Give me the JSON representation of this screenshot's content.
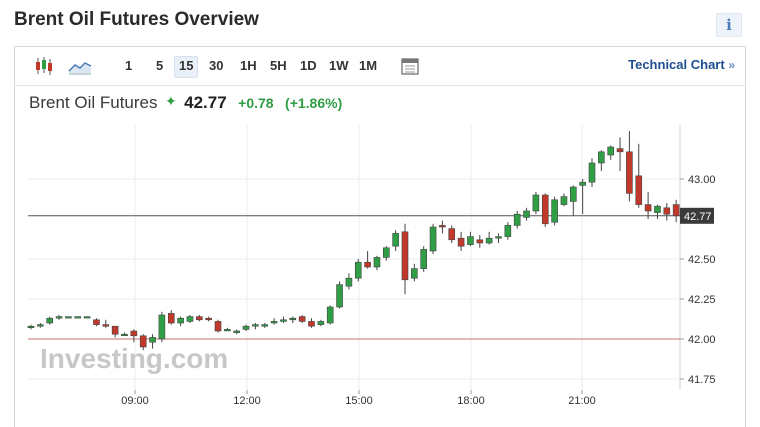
{
  "page": {
    "title": "Brent Oil Futures Overview",
    "info_glyph": "i"
  },
  "toolbar": {
    "intervals": [
      "1",
      "5",
      "15",
      "30",
      "1H",
      "5H",
      "1D",
      "1W",
      "1M"
    ],
    "active_interval": "15",
    "technical_chart_label": "Technical Chart",
    "technical_chart_arrow": "»"
  },
  "quote": {
    "name": "Brent Oil Futures",
    "price": "42.77",
    "change": "+0.78",
    "change_pct": "(+1.86%)"
  },
  "chart_data": {
    "type": "candlestick",
    "x_ticks": [
      "09:00",
      "12:00",
      "15:00",
      "18:00",
      "21:00"
    ],
    "y_ticks": [
      "43.00",
      "42.50",
      "42.25",
      "42.00",
      "41.75"
    ],
    "ylim": [
      41.72,
      43.3
    ],
    "current_price_label": "42.77",
    "current_price": 42.77,
    "reference_line": 42.0,
    "watermark": "Investing.com",
    "candles": [
      [
        42.08,
        42.09,
        42.06,
        42.08
      ],
      [
        42.08,
        42.1,
        42.07,
        42.09
      ],
      [
        42.1,
        42.14,
        42.09,
        42.13
      ],
      [
        42.13,
        42.15,
        42.12,
        42.14
      ],
      [
        42.14,
        42.14,
        42.14,
        42.14
      ],
      [
        42.14,
        42.14,
        42.14,
        42.14
      ],
      [
        42.14,
        42.14,
        42.14,
        42.14
      ],
      [
        42.12,
        42.13,
        42.08,
        42.09
      ],
      [
        42.09,
        42.12,
        42.07,
        42.08
      ],
      [
        42.08,
        42.08,
        42.01,
        42.03
      ],
      [
        42.03,
        42.04,
        42.02,
        42.03
      ],
      [
        42.05,
        42.06,
        41.98,
        42.02
      ],
      [
        42.02,
        42.03,
        41.93,
        41.95
      ],
      [
        41.98,
        42.03,
        41.94,
        42.01
      ],
      [
        42.0,
        42.17,
        41.98,
        42.15
      ],
      [
        42.16,
        42.18,
        42.09,
        42.1
      ],
      [
        42.1,
        42.14,
        42.08,
        42.13
      ],
      [
        42.11,
        42.15,
        42.1,
        42.14
      ],
      [
        42.14,
        42.15,
        42.11,
        42.12
      ],
      [
        42.13,
        42.14,
        42.11,
        42.12
      ],
      [
        42.11,
        42.12,
        42.04,
        42.05
      ],
      [
        42.06,
        42.07,
        42.05,
        42.06
      ],
      [
        42.04,
        42.06,
        42.03,
        42.05
      ],
      [
        42.06,
        42.09,
        42.05,
        42.08
      ],
      [
        42.08,
        42.1,
        42.06,
        42.09
      ],
      [
        42.08,
        42.1,
        42.07,
        42.09
      ],
      [
        42.1,
        42.13,
        42.09,
        42.11
      ],
      [
        42.11,
        42.14,
        42.1,
        42.12
      ],
      [
        42.12,
        42.14,
        42.1,
        42.13
      ],
      [
        42.14,
        42.15,
        42.1,
        42.11
      ],
      [
        42.11,
        42.13,
        42.07,
        42.08
      ],
      [
        42.09,
        42.12,
        42.08,
        42.11
      ],
      [
        42.1,
        42.21,
        42.09,
        42.2
      ],
      [
        42.2,
        42.36,
        42.19,
        42.34
      ],
      [
        42.33,
        42.41,
        42.31,
        42.38
      ],
      [
        42.38,
        42.5,
        42.36,
        42.48
      ],
      [
        42.48,
        42.55,
        42.44,
        42.45
      ],
      [
        42.45,
        42.52,
        42.43,
        42.51
      ],
      [
        42.51,
        42.58,
        42.49,
        42.57
      ],
      [
        42.58,
        42.68,
        42.55,
        42.66
      ],
      [
        42.67,
        42.72,
        42.28,
        42.37
      ],
      [
        42.38,
        42.47,
        42.36,
        42.44
      ],
      [
        42.44,
        42.58,
        42.42,
        42.56
      ],
      [
        42.55,
        42.72,
        42.53,
        42.7
      ],
      [
        42.71,
        42.74,
        42.66,
        42.7
      ],
      [
        42.69,
        42.71,
        42.6,
        42.62
      ],
      [
        42.63,
        42.67,
        42.55,
        42.58
      ],
      [
        42.59,
        42.67,
        42.58,
        42.64
      ],
      [
        42.62,
        42.65,
        42.57,
        42.6
      ],
      [
        42.6,
        42.67,
        42.59,
        42.63
      ],
      [
        42.63,
        42.66,
        42.6,
        42.64
      ],
      [
        42.64,
        42.73,
        42.62,
        42.71
      ],
      [
        42.71,
        42.8,
        42.69,
        42.78
      ],
      [
        42.76,
        42.82,
        42.74,
        42.8
      ],
      [
        42.8,
        42.92,
        42.78,
        42.9
      ],
      [
        42.9,
        42.91,
        42.7,
        42.72
      ],
      [
        42.73,
        42.89,
        42.71,
        42.87
      ],
      [
        42.84,
        42.91,
        42.83,
        42.89
      ],
      [
        42.86,
        42.96,
        42.77,
        42.95
      ],
      [
        42.96,
        43.0,
        42.78,
        42.98
      ],
      [
        42.98,
        43.13,
        42.95,
        43.1
      ],
      [
        43.1,
        43.18,
        43.05,
        43.17
      ],
      [
        43.15,
        43.21,
        43.12,
        43.2
      ],
      [
        43.19,
        43.26,
        43.05,
        43.17
      ],
      [
        43.17,
        43.3,
        42.86,
        42.91
      ],
      [
        43.02,
        43.22,
        42.82,
        42.84
      ],
      [
        42.84,
        42.92,
        42.75,
        42.8
      ],
      [
        42.79,
        42.84,
        42.75,
        42.83
      ],
      [
        42.82,
        42.85,
        42.74,
        42.78
      ],
      [
        42.84,
        42.87,
        42.73,
        42.77
      ]
    ]
  }
}
